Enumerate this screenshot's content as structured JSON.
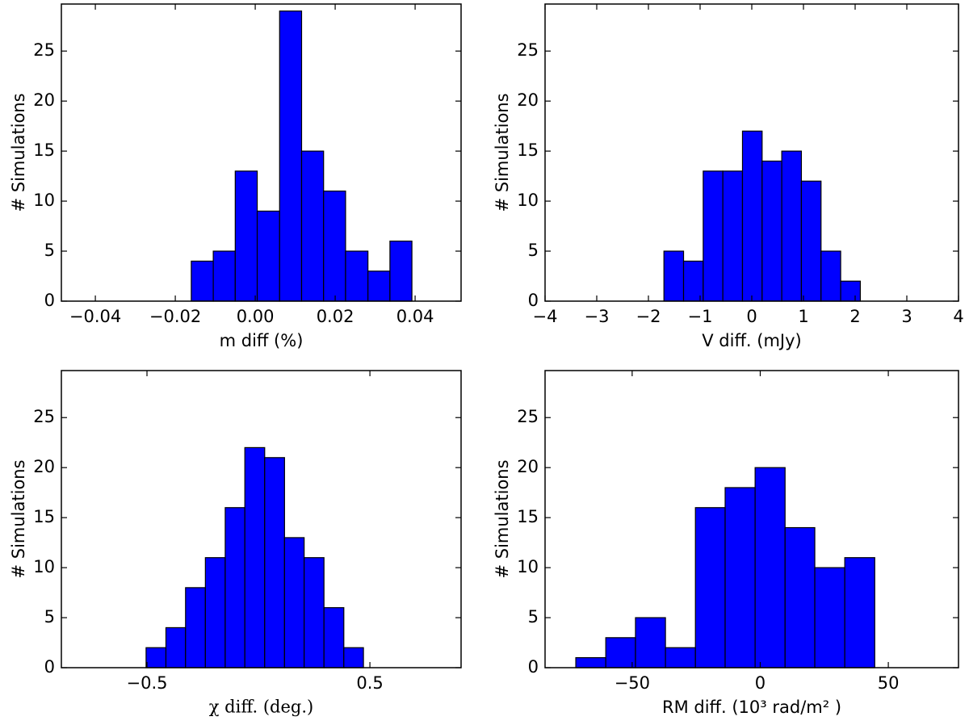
{
  "chart_data": [
    {
      "type": "histogram",
      "xlabel": "m diff (%)",
      "ylabel": "# Simulations",
      "color": "#0000ff",
      "bins": [
        -0.016,
        -0.0105,
        -0.005,
        0.0005,
        0.0061,
        0.0116,
        0.0171,
        0.0226,
        0.0282,
        0.0337,
        0.0392
      ],
      "values": [
        4,
        5,
        13,
        9,
        29,
        15,
        11,
        5,
        3,
        6
      ],
      "xlim": [
        -0.0485,
        0.0515
      ],
      "xticks": [
        {
          "value": -0.04,
          "label": "−0.04"
        },
        {
          "value": -0.02,
          "label": "−0.02"
        },
        {
          "value": 0,
          "label": "0.00"
        },
        0.02,
        0.04
      ],
      "ylim": [
        0,
        29.7
      ],
      "yticks": [
        0,
        5,
        10,
        15,
        20,
        25
      ]
    },
    {
      "type": "histogram",
      "xlabel": "V diff. (mJy)",
      "ylabel": "# Simulations",
      "color": "#0000ff",
      "bins": [
        -1.7,
        -1.32,
        -0.94,
        -0.56,
        -0.18,
        0.2,
        0.58,
        0.96,
        1.34,
        1.72,
        2.1
      ],
      "values": [
        5,
        4,
        13,
        13,
        17,
        14,
        15,
        12,
        5,
        2
      ],
      "xlim": [
        -4,
        4
      ],
      "xticks": [
        {
          "value": -4,
          "label": "−4"
        },
        {
          "value": -3,
          "label": "−3"
        },
        {
          "value": -2,
          "label": "−2"
        },
        {
          "value": -1,
          "label": "−1"
        },
        0,
        1,
        2,
        3,
        4
      ],
      "ylim": [
        0,
        29.7
      ],
      "yticks": [
        0,
        5,
        10,
        15,
        20,
        25
      ]
    },
    {
      "type": "histogram",
      "xlabel": "χ diff. (deg.)",
      "ylabel": "# Simulations",
      "color": "#0000ff",
      "bins": [
        -0.504,
        -0.415,
        -0.327,
        -0.238,
        -0.149,
        -0.061,
        0.028,
        0.117,
        0.205,
        0.294,
        0.383,
        0.471
      ],
      "values": [
        2,
        4,
        8,
        11,
        16,
        22,
        21,
        13,
        11,
        6,
        2
      ],
      "xlim": [
        -0.884,
        0.909
      ],
      "xticks": [
        {
          "value": -0.5,
          "label": "−0.5"
        },
        0.5
      ],
      "ylim": [
        0,
        29.7
      ],
      "yticks": [
        0,
        5,
        10,
        15,
        20,
        25
      ]
    },
    {
      "type": "histogram",
      "xlabel": "RM diff. (10³ rad/m² )",
      "ylabel": "# Simulations",
      "color": "#0000ff",
      "bins": [
        -72,
        -60.3,
        -48.7,
        -37,
        -25.3,
        -13.7,
        -2,
        9.7,
        21.3,
        33,
        44.7
      ],
      "values": [
        1,
        3,
        5,
        2,
        16,
        18,
        20,
        14,
        10,
        11
      ],
      "xlim": [
        -84,
        77.4
      ],
      "xticks": [
        {
          "value": -50,
          "label": "−50"
        },
        0,
        50
      ],
      "ylim": [
        0,
        29.7
      ],
      "yticks": [
        0,
        5,
        10,
        15,
        20,
        25
      ]
    }
  ]
}
